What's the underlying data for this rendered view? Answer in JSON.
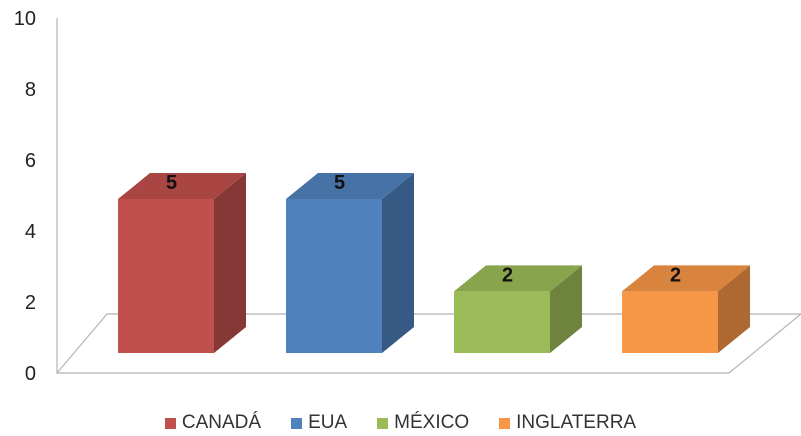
{
  "chart_data": {
    "type": "bar",
    "style": "3d-column",
    "categories": [
      "CANADÁ",
      "EUA",
      "MÉXICO",
      "INGLATERRA"
    ],
    "values": [
      5,
      5,
      2,
      2
    ],
    "data_labels": [
      "5",
      "5",
      "2",
      "2"
    ],
    "colors": [
      "#c0504d",
      "#4f81bd",
      "#9bbb59",
      "#f79646"
    ],
    "ylim": [
      0,
      10
    ],
    "yticks": [
      0,
      2,
      4,
      6,
      8,
      10
    ],
    "grid": false,
    "legend": "bottom"
  }
}
